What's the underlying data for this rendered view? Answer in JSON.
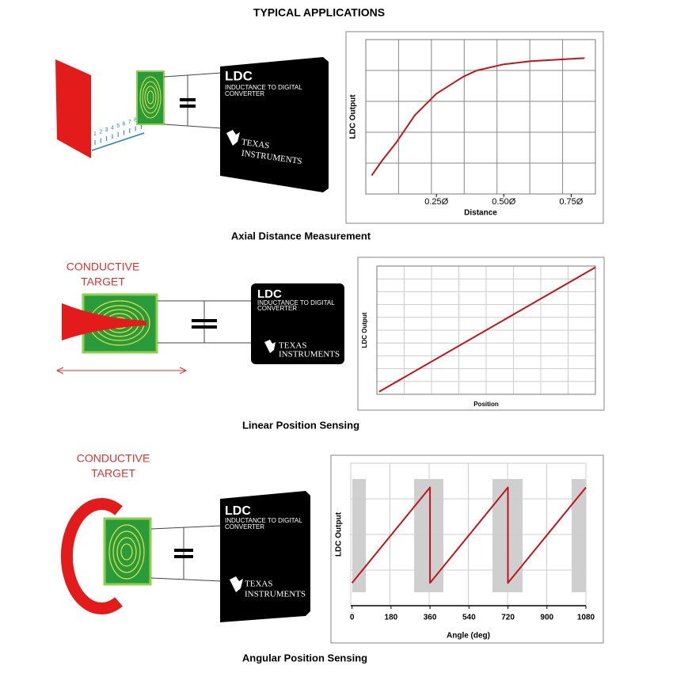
{
  "title": "TYPICAL APPLICATIONS",
  "panels": [
    {
      "caption": "Axial Distance Measurement",
      "illustration": {
        "chip_title": "LDC",
        "chip_subtitle_1": "INDUCTANCE TO DIGITAL",
        "chip_subtitle_2": "CONVERTER",
        "brand_1": "TEXAS",
        "brand_2": "INSTRUMENTS",
        "scale_labels": [
          1,
          2,
          3,
          4,
          5,
          6,
          7,
          8,
          9
        ]
      },
      "chart": {
        "type": "line",
        "x_label": "Distance",
        "y_label": "LDC Output",
        "color": "#c0151b",
        "grid": true,
        "x": [
          0.01,
          0.05,
          0.1,
          0.17,
          0.25,
          0.35,
          0.4,
          0.5,
          0.6,
          0.8
        ],
        "values": [
          0.12,
          0.22,
          0.33,
          0.51,
          0.65,
          0.76,
          0.8,
          0.84,
          0.86,
          0.88
        ],
        "xlim": [
          -0.012,
          0.84
        ],
        "ylim": [
          0,
          1
        ],
        "xticks": [
          {
            "value": 0.25,
            "label": "0.25Ø"
          },
          {
            "value": 0.5,
            "label": "0.50Ø"
          },
          {
            "value": 0.75,
            "label": "0.75Ø"
          }
        ]
      }
    },
    {
      "caption": "Linear Position Sensing",
      "illustration": {
        "target_1": "CONDUCTIVE",
        "target_2": "TARGET",
        "chip_title": "LDC",
        "chip_subtitle_1": "INDUCTANCE TO DIGITAL",
        "chip_subtitle_2": "CONVERTER",
        "brand_1": "TEXAS",
        "brand_2": "INSTRUMENTS"
      },
      "chart": {
        "type": "line",
        "x_label": "Position",
        "y_label": "LDC Output",
        "color": "#c0151b",
        "grid": true,
        "x": [
          0.01,
          1
        ],
        "values": [
          0.02,
          0.99
        ],
        "xlim": [
          0,
          1
        ],
        "ylim": [
          0,
          1
        ],
        "xticks": []
      }
    },
    {
      "caption": "Angular Position Sensing",
      "illustration": {
        "target_1": "CONDUCTIVE",
        "target_2": "TARGET",
        "chip_title": "LDC",
        "chip_subtitle_1": "INDUCTANCE TO DIGITAL",
        "chip_subtitle_2": "CONVERTER",
        "brand_1": "TEXAS",
        "brand_2": "INSTRUMENTS"
      },
      "chart": {
        "type": "line",
        "x_label": "Angle (deg)",
        "y_label": "LDC Output",
        "color": "#c0151b",
        "grid": true,
        "x": [
          0,
          360,
          360,
          720,
          720,
          1080
        ],
        "values": [
          0.16,
          0.83,
          0.16,
          0.83,
          0.16,
          0.83
        ],
        "xlim": [
          -6,
          1080
        ],
        "ylim": [
          0,
          1
        ],
        "xticks": [
          0,
          180,
          360,
          540,
          720,
          900,
          1080
        ]
      }
    }
  ]
}
